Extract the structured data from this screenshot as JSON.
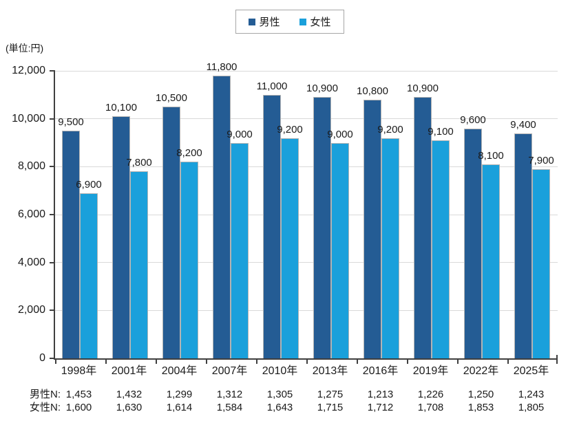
{
  "chart_data": {
    "type": "bar",
    "title": "",
    "unit_label": "(単位:円)",
    "categories": [
      "1998年",
      "2001年",
      "2004年",
      "2007年",
      "2010年",
      "2013年",
      "2016年",
      "2019年",
      "2022年",
      "2025年"
    ],
    "series": [
      {
        "name": "男性",
        "color": "#245C94",
        "values": [
          9500,
          10100,
          10500,
          11800,
          11000,
          10900,
          10800,
          10900,
          9600,
          9400
        ],
        "labels": [
          "9,500",
          "10,100",
          "10,500",
          "11,800",
          "11,000",
          "10,900",
          "10,800",
          "10,900",
          "9,600",
          "9,400"
        ]
      },
      {
        "name": "女性",
        "color": "#1AA0DB",
        "values": [
          6900,
          7800,
          8200,
          9000,
          9200,
          9000,
          9200,
          9100,
          8100,
          7900
        ],
        "labels": [
          "6,900",
          "7,800",
          "8,200",
          "9,000",
          "9,200",
          "9,000",
          "9,200",
          "9,100",
          "8,100",
          "7,900"
        ]
      }
    ],
    "sample_sizes": {
      "male_label": "男性N:",
      "female_label": "女性N:",
      "male": [
        "1,453",
        "1,432",
        "1,299",
        "1,312",
        "1,305",
        "1,275",
        "1,213",
        "1,226",
        "1,250",
        "1,243"
      ],
      "female": [
        "1,600",
        "1,630",
        "1,614",
        "1,584",
        "1,643",
        "1,715",
        "1,712",
        "1,708",
        "1,853",
        "1,805"
      ]
    },
    "y_ticks": [
      "12,000",
      "10,000",
      "8,000",
      "6,000",
      "4,000",
      "2,000",
      "0"
    ],
    "ylim": [
      0,
      12000
    ],
    "grid": "horizontal",
    "legend_position": "top-center",
    "axis_color": "#3f3f3f",
    "gridline_color": "#d9d9d9",
    "text_color": "#1a1a1a"
  }
}
